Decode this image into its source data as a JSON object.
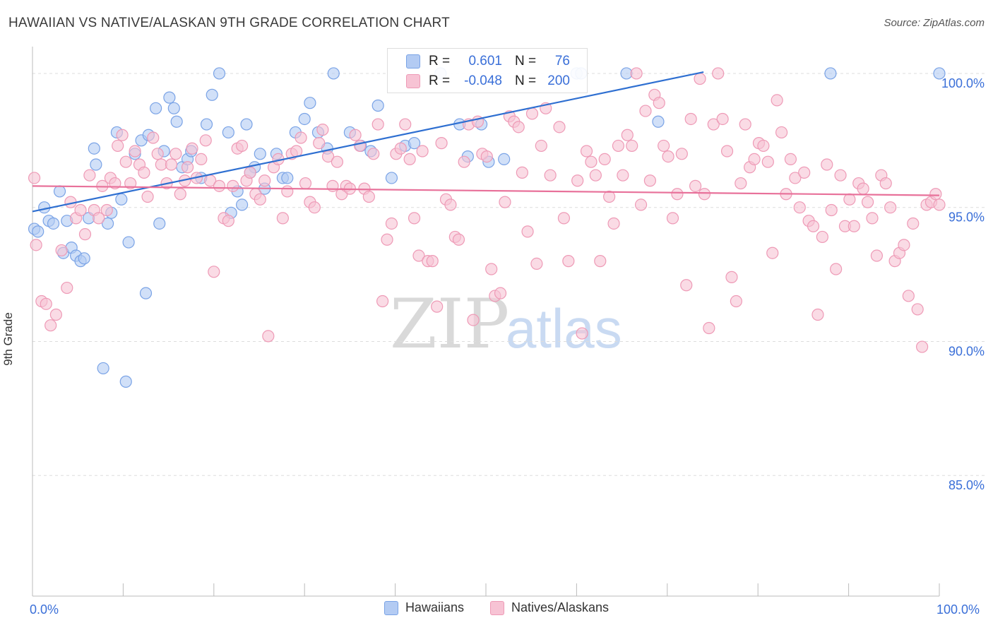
{
  "title": "HAWAIIAN VS NATIVE/ALASKAN 9TH GRADE CORRELATION CHART",
  "source": "Source: ZipAtlas.com",
  "watermark": {
    "zip": "ZIP",
    "atlas": "atlas"
  },
  "colors": {
    "hawaiians_fill": "#b3cbf3",
    "hawaiians_stroke": "#7aa3e6",
    "hawaiians_line": "#2e6fd1",
    "natives_fill": "#f7c3d4",
    "natives_stroke": "#ee9ab6",
    "natives_line": "#e8719a",
    "axis_label": "#3a6fd8",
    "grid": "#dddddd"
  },
  "stats": {
    "r_label": "R =",
    "n_label": "N =",
    "hawaiians": {
      "r": "0.601",
      "n": "76"
    },
    "natives": {
      "r": "-0.048",
      "n": "200"
    }
  },
  "legend": [
    "Hawaiians",
    "Natives/Alaskans"
  ],
  "chart_data": {
    "type": "scatter",
    "xlabel": "",
    "ylabel": "9th Grade",
    "xlim": [
      0,
      100
    ],
    "ylim": [
      80.5,
      101.0
    ],
    "x_tick_labels": {
      "left": "0.0%",
      "right": "100.0%"
    },
    "y_ticks": [
      {
        "value": 100,
        "label": "100.0%"
      },
      {
        "value": 95,
        "label": "95.0%"
      },
      {
        "value": 90,
        "label": "90.0%"
      },
      {
        "value": 85,
        "label": "85.0%"
      }
    ],
    "grid": true,
    "legend_position": "bottom",
    "series": [
      {
        "name": "Hawaiians",
        "trend": {
          "x": [
            0.0,
            74.0
          ],
          "y": [
            94.85,
            100.05
          ]
        },
        "points": [
          [
            0.2,
            94.2
          ],
          [
            0.6,
            94.1
          ],
          [
            1.3,
            95.0
          ],
          [
            1.8,
            94.5
          ],
          [
            2.3,
            94.4
          ],
          [
            3.0,
            95.6
          ],
          [
            3.4,
            93.3
          ],
          [
            3.8,
            94.5
          ],
          [
            4.3,
            93.5
          ],
          [
            4.8,
            93.2
          ],
          [
            5.3,
            93.0
          ],
          [
            5.7,
            93.1
          ],
          [
            6.2,
            94.6
          ],
          [
            6.8,
            97.2
          ],
          [
            7.0,
            96.6
          ],
          [
            7.8,
            89.0
          ],
          [
            8.3,
            94.4
          ],
          [
            8.7,
            94.8
          ],
          [
            9.3,
            97.8
          ],
          [
            9.8,
            95.3
          ],
          [
            10.3,
            88.5
          ],
          [
            10.6,
            93.7
          ],
          [
            11.3,
            97.0
          ],
          [
            12.0,
            97.5
          ],
          [
            12.5,
            91.8
          ],
          [
            12.8,
            97.7
          ],
          [
            13.6,
            98.7
          ],
          [
            14.0,
            94.4
          ],
          [
            14.5,
            97.1
          ],
          [
            15.1,
            99.1
          ],
          [
            15.6,
            98.7
          ],
          [
            15.9,
            98.2
          ],
          [
            16.5,
            96.5
          ],
          [
            17.1,
            96.8
          ],
          [
            17.5,
            97.1
          ],
          [
            18.6,
            96.1
          ],
          [
            19.2,
            98.1
          ],
          [
            19.8,
            99.2
          ],
          [
            20.6,
            100.0
          ],
          [
            21.6,
            97.8
          ],
          [
            21.9,
            94.8
          ],
          [
            22.6,
            95.6
          ],
          [
            23.1,
            95.1
          ],
          [
            23.6,
            98.1
          ],
          [
            24.5,
            96.5
          ],
          [
            25.1,
            97.0
          ],
          [
            25.6,
            95.7
          ],
          [
            26.9,
            97.0
          ],
          [
            27.6,
            96.1
          ],
          [
            28.1,
            96.1
          ],
          [
            29.0,
            97.8
          ],
          [
            30.0,
            98.3
          ],
          [
            30.6,
            98.9
          ],
          [
            31.5,
            97.8
          ],
          [
            32.5,
            97.2
          ],
          [
            33.2,
            100.0
          ],
          [
            35.0,
            97.8
          ],
          [
            36.2,
            97.3
          ],
          [
            37.3,
            97.1
          ],
          [
            38.1,
            98.8
          ],
          [
            39.6,
            96.1
          ],
          [
            41.1,
            97.3
          ],
          [
            42.1,
            97.4
          ],
          [
            45.0,
            100.0
          ],
          [
            47.1,
            98.1
          ],
          [
            48.0,
            96.9
          ],
          [
            49.5,
            98.1
          ],
          [
            50.3,
            96.7
          ],
          [
            52.0,
            96.8
          ],
          [
            60.0,
            100.0
          ],
          [
            60.5,
            100.0
          ],
          [
            65.5,
            100.0
          ],
          [
            69.0,
            98.2
          ],
          [
            88.0,
            100.0
          ],
          [
            100.0,
            100.0
          ],
          [
            24.0,
            96.3
          ]
        ]
      },
      {
        "name": "Natives/Alaskans",
        "trend": {
          "x": [
            0.0,
            100.0
          ],
          "y": [
            95.8,
            95.45
          ]
        },
        "points": [
          [
            0.2,
            96.1
          ],
          [
            0.4,
            93.6
          ],
          [
            1.0,
            91.5
          ],
          [
            1.5,
            91.4
          ],
          [
            2.0,
            90.6
          ],
          [
            2.6,
            91.0
          ],
          [
            3.2,
            93.4
          ],
          [
            3.8,
            92.0
          ],
          [
            4.2,
            95.2
          ],
          [
            4.8,
            94.6
          ],
          [
            5.3,
            94.9
          ],
          [
            5.8,
            94.0
          ],
          [
            6.3,
            96.2
          ],
          [
            6.8,
            94.9
          ],
          [
            7.3,
            94.6
          ],
          [
            7.7,
            95.8
          ],
          [
            8.2,
            94.9
          ],
          [
            8.6,
            96.1
          ],
          [
            9.1,
            95.9
          ],
          [
            9.4,
            97.3
          ],
          [
            9.9,
            97.7
          ],
          [
            10.3,
            96.7
          ],
          [
            10.8,
            95.9
          ],
          [
            11.3,
            97.1
          ],
          [
            11.8,
            96.6
          ],
          [
            12.3,
            96.3
          ],
          [
            12.7,
            95.4
          ],
          [
            13.3,
            97.6
          ],
          [
            13.8,
            97.0
          ],
          [
            14.2,
            96.6
          ],
          [
            14.8,
            95.9
          ],
          [
            15.3,
            96.6
          ],
          [
            15.8,
            97.0
          ],
          [
            16.3,
            95.5
          ],
          [
            16.8,
            96.0
          ],
          [
            17.1,
            96.5
          ],
          [
            17.6,
            97.2
          ],
          [
            18.1,
            96.1
          ],
          [
            18.6,
            96.8
          ],
          [
            19.1,
            97.5
          ],
          [
            19.6,
            96.0
          ],
          [
            20.0,
            92.6
          ],
          [
            20.6,
            95.8
          ],
          [
            21.1,
            94.6
          ],
          [
            21.6,
            94.5
          ],
          [
            22.1,
            95.8
          ],
          [
            22.6,
            97.2
          ],
          [
            23.1,
            97.3
          ],
          [
            23.6,
            96.0
          ],
          [
            24.0,
            96.3
          ],
          [
            24.6,
            95.5
          ],
          [
            25.1,
            95.3
          ],
          [
            25.6,
            96.0
          ],
          [
            26.0,
            90.2
          ],
          [
            26.6,
            96.5
          ],
          [
            27.1,
            96.8
          ],
          [
            27.6,
            94.6
          ],
          [
            28.1,
            95.6
          ],
          [
            28.6,
            97.0
          ],
          [
            29.1,
            97.1
          ],
          [
            29.6,
            97.6
          ],
          [
            30.1,
            95.9
          ],
          [
            30.6,
            95.2
          ],
          [
            31.1,
            95.0
          ],
          [
            31.6,
            97.4
          ],
          [
            32.0,
            97.9
          ],
          [
            32.6,
            96.9
          ],
          [
            33.1,
            95.8
          ],
          [
            33.6,
            96.7
          ],
          [
            34.1,
            95.5
          ],
          [
            34.6,
            95.8
          ],
          [
            35.0,
            95.7
          ],
          [
            35.6,
            97.7
          ],
          [
            36.1,
            97.3
          ],
          [
            36.6,
            95.7
          ],
          [
            37.1,
            95.4
          ],
          [
            37.6,
            97.0
          ],
          [
            38.1,
            98.1
          ],
          [
            38.6,
            91.5
          ],
          [
            39.1,
            93.8
          ],
          [
            39.6,
            94.4
          ],
          [
            40.1,
            97.0
          ],
          [
            40.6,
            97.2
          ],
          [
            41.1,
            98.1
          ],
          [
            41.6,
            96.8
          ],
          [
            42.1,
            94.6
          ],
          [
            42.6,
            93.2
          ],
          [
            43.0,
            97.1
          ],
          [
            43.6,
            93.0
          ],
          [
            44.1,
            93.0
          ],
          [
            44.6,
            91.3
          ],
          [
            45.1,
            97.4
          ],
          [
            45.6,
            95.3
          ],
          [
            46.1,
            95.1
          ],
          [
            46.6,
            93.9
          ],
          [
            47.0,
            93.8
          ],
          [
            47.6,
            96.7
          ],
          [
            48.1,
            98.1
          ],
          [
            48.6,
            90.8
          ],
          [
            49.1,
            98.2
          ],
          [
            49.6,
            97.0
          ],
          [
            50.1,
            96.9
          ],
          [
            50.6,
            92.7
          ],
          [
            51.0,
            91.7
          ],
          [
            51.6,
            91.8
          ],
          [
            52.1,
            95.2
          ],
          [
            52.6,
            98.4
          ],
          [
            53.1,
            98.2
          ],
          [
            53.6,
            98.0
          ],
          [
            54.0,
            96.3
          ],
          [
            54.6,
            94.1
          ],
          [
            55.1,
            98.5
          ],
          [
            55.6,
            92.9
          ],
          [
            56.1,
            97.3
          ],
          [
            56.6,
            98.7
          ],
          [
            57.1,
            96.2
          ],
          [
            58.1,
            98.0
          ],
          [
            58.6,
            94.6
          ],
          [
            59.1,
            93.0
          ],
          [
            60.1,
            96.0
          ],
          [
            60.6,
            90.3
          ],
          [
            61.1,
            97.1
          ],
          [
            61.6,
            96.7
          ],
          [
            62.1,
            96.2
          ],
          [
            62.6,
            93.0
          ],
          [
            63.1,
            96.8
          ],
          [
            63.6,
            95.4
          ],
          [
            64.1,
            94.4
          ],
          [
            64.6,
            97.3
          ],
          [
            65.1,
            96.2
          ],
          [
            65.6,
            97.7
          ],
          [
            66.1,
            97.3
          ],
          [
            66.6,
            100.0
          ],
          [
            67.1,
            95.1
          ],
          [
            67.6,
            98.6
          ],
          [
            68.1,
            96.0
          ],
          [
            68.6,
            99.2
          ],
          [
            69.1,
            98.9
          ],
          [
            69.6,
            97.3
          ],
          [
            70.1,
            96.9
          ],
          [
            70.6,
            94.6
          ],
          [
            71.1,
            95.5
          ],
          [
            71.6,
            97.0
          ],
          [
            72.1,
            92.1
          ],
          [
            72.6,
            98.3
          ],
          [
            73.1,
            95.8
          ],
          [
            73.6,
            99.8
          ],
          [
            74.1,
            95.5
          ],
          [
            74.6,
            90.5
          ],
          [
            75.1,
            98.1
          ],
          [
            75.6,
            100.0
          ],
          [
            76.1,
            98.3
          ],
          [
            76.6,
            97.1
          ],
          [
            77.1,
            92.4
          ],
          [
            77.6,
            91.5
          ],
          [
            78.1,
            95.9
          ],
          [
            78.6,
            98.1
          ],
          [
            79.1,
            96.5
          ],
          [
            79.6,
            96.8
          ],
          [
            80.1,
            97.4
          ],
          [
            80.6,
            97.3
          ],
          [
            81.1,
            96.7
          ],
          [
            81.6,
            93.3
          ],
          [
            82.1,
            99.0
          ],
          [
            82.6,
            97.8
          ],
          [
            83.1,
            95.5
          ],
          [
            83.6,
            96.8
          ],
          [
            84.1,
            96.1
          ],
          [
            84.6,
            95.0
          ],
          [
            85.1,
            96.3
          ],
          [
            85.6,
            94.5
          ],
          [
            86.1,
            94.3
          ],
          [
            86.6,
            91.0
          ],
          [
            87.1,
            93.9
          ],
          [
            87.6,
            96.6
          ],
          [
            88.1,
            94.9
          ],
          [
            88.6,
            92.7
          ],
          [
            89.1,
            96.2
          ],
          [
            89.6,
            94.3
          ],
          [
            90.1,
            95.3
          ],
          [
            90.6,
            94.3
          ],
          [
            91.1,
            95.9
          ],
          [
            91.6,
            95.7
          ],
          [
            92.1,
            95.2
          ],
          [
            92.6,
            94.6
          ],
          [
            93.1,
            93.2
          ],
          [
            93.6,
            96.2
          ],
          [
            94.1,
            95.9
          ],
          [
            94.6,
            95.0
          ],
          [
            95.1,
            93.0
          ],
          [
            95.6,
            93.3
          ],
          [
            96.1,
            93.6
          ],
          [
            96.6,
            91.7
          ],
          [
            97.1,
            94.4
          ],
          [
            97.6,
            91.2
          ],
          [
            98.1,
            89.8
          ],
          [
            98.6,
            95.1
          ],
          [
            99.1,
            95.2
          ],
          [
            99.6,
            95.5
          ],
          [
            100.0,
            95.1
          ]
        ]
      }
    ]
  }
}
